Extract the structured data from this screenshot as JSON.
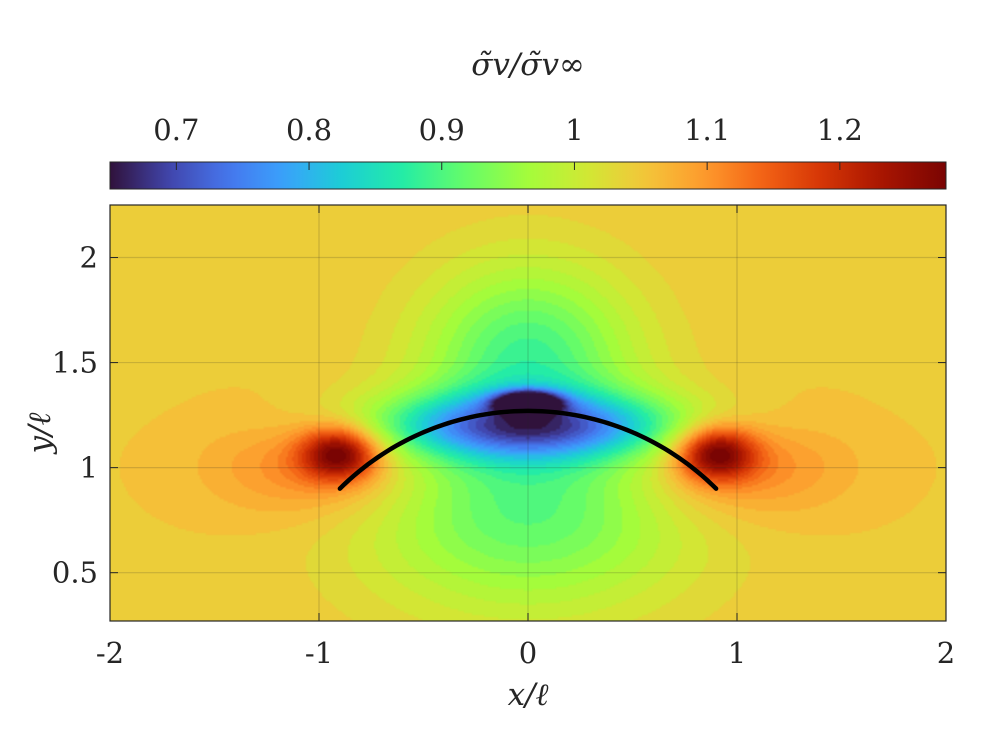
{
  "chart_data": {
    "type": "heatmap",
    "subtype": "filled-contour",
    "colormap": "turbo",
    "colorbar": {
      "label": "σ̃v/σ̃v∞",
      "placement": "top",
      "range": [
        0.65,
        1.28
      ],
      "tick_values": [
        0.7,
        0.8,
        0.9,
        1.0,
        1.1,
        1.2
      ],
      "tick_labels": [
        "0.7",
        "0.8",
        "0.9",
        "1",
        "1.1",
        "1.2"
      ]
    },
    "x_axis": {
      "label": "x/ℓ",
      "range": [
        -2,
        2
      ],
      "tick_values": [
        -2,
        -1,
        0,
        1,
        2
      ],
      "tick_labels": [
        "-2",
        "-1",
        "0",
        "1",
        "2"
      ]
    },
    "y_axis": {
      "label": "y/ℓ",
      "range": [
        0.27,
        2.25
      ],
      "tick_values": [
        0.5,
        1,
        1.5,
        2
      ],
      "tick_labels": [
        "0.5",
        "1",
        "1.5",
        "2"
      ]
    },
    "grid": true,
    "background_value": 1.05,
    "field_features": [
      {
        "kind": "high",
        "x": -0.9,
        "y": 1.07,
        "peak": 1.27,
        "sx": 0.13,
        "sy": 0.09
      },
      {
        "kind": "high",
        "x": 0.9,
        "y": 1.07,
        "peak": 1.27,
        "sx": 0.13,
        "sy": 0.09
      },
      {
        "kind": "high",
        "x": -1.0,
        "y": 1.02,
        "peak": 1.13,
        "sx": 0.35,
        "sy": 0.18
      },
      {
        "kind": "high",
        "x": 1.0,
        "y": 1.02,
        "peak": 1.13,
        "sx": 0.35,
        "sy": 0.18
      },
      {
        "kind": "low",
        "x": 0.0,
        "y": 1.31,
        "peak": 0.66,
        "sx": 0.1,
        "sy": 0.035
      },
      {
        "kind": "low",
        "x": 0.0,
        "y": 1.2,
        "peak": 0.8,
        "sx": 0.55,
        "sy": 0.11
      },
      {
        "kind": "low",
        "x": 0.0,
        "y": 1.55,
        "peak": 0.9,
        "sx": 0.35,
        "sy": 0.3
      },
      {
        "kind": "low",
        "x": 0.0,
        "y": 0.8,
        "peak": 0.91,
        "sx": 0.55,
        "sy": 0.35
      }
    ],
    "arc": {
      "shape": "circular",
      "x_start": -0.9,
      "x_end": 0.9,
      "y_ends": 0.9,
      "y_apex": 1.27,
      "color": "#000000"
    }
  }
}
